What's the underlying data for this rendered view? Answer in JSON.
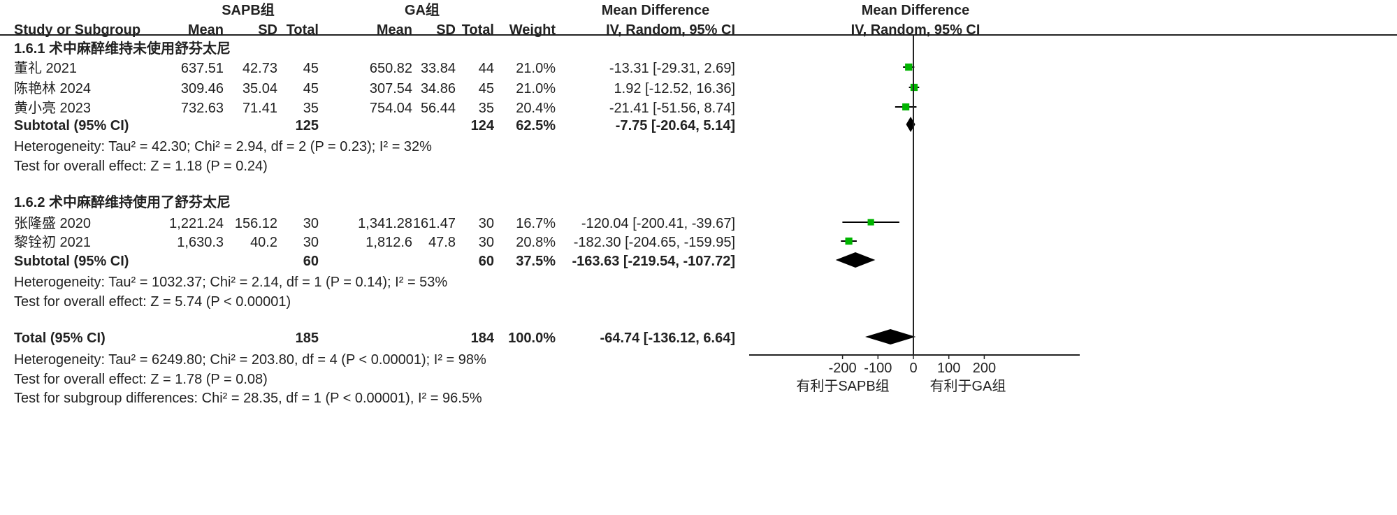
{
  "header": {
    "group1": "SAPB组",
    "group2": "GA组",
    "md_title": "Mean Difference",
    "md_method": "IV, Random, 95% CI",
    "plot_title": "Mean Difference",
    "plot_method": "IV, Random, 95% CI",
    "study": "Study or Subgroup",
    "mean": "Mean",
    "sd": "SD",
    "total": "Total",
    "weight": "Weight"
  },
  "subgroups": [
    {
      "title": "1.6.1 术中麻醉维持未使用舒芬太尼",
      "studies": [
        {
          "name": "董礼 2021",
          "m1": "637.51",
          "sd1": "42.73",
          "n1": "45",
          "m2": "650.82",
          "sd2": "33.84",
          "n2": "44",
          "weight": "21.0%",
          "ci": "-13.31 [-29.31, 2.69]",
          "md": -13.31,
          "lo": -29.31,
          "hi": 2.69,
          "w": 21.0
        },
        {
          "name": "陈艳林 2024",
          "m1": "309.46",
          "sd1": "35.04",
          "n1": "45",
          "m2": "307.54",
          "sd2": "34.86",
          "n2": "45",
          "weight": "21.0%",
          "ci": "1.92 [-12.52, 16.36]",
          "md": 1.92,
          "lo": -12.52,
          "hi": 16.36,
          "w": 21.0
        },
        {
          "name": "黄小亮 2023",
          "m1": "732.63",
          "sd1": "71.41",
          "n1": "35",
          "m2": "754.04",
          "sd2": "56.44",
          "n2": "35",
          "weight": "20.4%",
          "ci": "-21.41 [-51.56, 8.74]",
          "md": -21.41,
          "lo": -51.56,
          "hi": 8.74,
          "w": 20.4
        }
      ],
      "subtotal": {
        "label": "Subtotal (95% CI)",
        "n1": "125",
        "n2": "124",
        "weight": "62.5%",
        "ci": "-7.75 [-20.64, 5.14]",
        "md": -7.75,
        "lo": -20.64,
        "hi": 5.14
      },
      "heterogeneity": "Heterogeneity: Tau² = 42.30; Chi² = 2.94, df = 2 (P = 0.23); I² = 32%",
      "overall": "Test for overall effect: Z = 1.18 (P = 0.24)"
    },
    {
      "title": "1.6.2 术中麻醉维持使用了舒芬太尼",
      "studies": [
        {
          "name": "张隆盛 2020",
          "m1": "1,221.24",
          "sd1": "156.12",
          "n1": "30",
          "m2": "1,341.28",
          "sd2": "161.47",
          "n2": "30",
          "weight": "16.7%",
          "ci": "-120.04 [-200.41, -39.67]",
          "md": -120.04,
          "lo": -200.41,
          "hi": -39.67,
          "w": 16.7
        },
        {
          "name": "黎铨初 2021",
          "m1": "1,630.3",
          "sd1": "40.2",
          "n1": "30",
          "m2": "1,812.6",
          "sd2": "47.8",
          "n2": "30",
          "weight": "20.8%",
          "ci": "-182.30 [-204.65, -159.95]",
          "md": -182.3,
          "lo": -204.65,
          "hi": -159.95,
          "w": 20.8
        }
      ],
      "subtotal": {
        "label": "Subtotal (95% CI)",
        "n1": "60",
        "n2": "60",
        "weight": "37.5%",
        "ci": "-163.63 [-219.54, -107.72]",
        "md": -163.63,
        "lo": -219.54,
        "hi": -107.72
      },
      "heterogeneity": "Heterogeneity: Tau² = 1032.37; Chi² = 2.14, df = 1 (P = 0.14); I² = 53%",
      "overall": "Test for overall effect: Z = 5.74 (P < 0.00001)"
    }
  ],
  "total": {
    "label": "Total (95% CI)",
    "n1": "185",
    "n2": "184",
    "weight": "100.0%",
    "ci": "-64.74 [-136.12, 6.64]",
    "md": -64.74,
    "lo": -136.12,
    "hi": 6.64,
    "heterogeneity": "Heterogeneity: Tau² = 6249.80; Chi² = 203.80, df = 4 (P < 0.00001); I² = 98%",
    "overall": "Test for overall effect: Z = 1.78 (P = 0.08)",
    "subgroup_diff": "Test for subgroup differences: Chi² = 28.35, df = 1 (P < 0.00001), I² = 96.5%"
  },
  "chart_data": {
    "type": "forest",
    "xlim": [
      -200,
      200
    ],
    "ticks": [
      "-200",
      "-100",
      "0",
      "100",
      "200"
    ],
    "tick_values": [
      -200,
      -100,
      0,
      100,
      200
    ],
    "favours_left": "有利于SAPB组",
    "favours_right": "有利于GA组",
    "square_color": "#00b400",
    "diamond_color": "#000000"
  }
}
